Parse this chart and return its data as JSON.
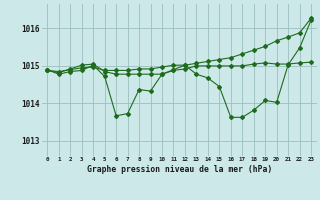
{
  "xlabel": "Graphe pression niveau de la mer (hPa)",
  "background_color": "#cce8e8",
  "plot_bg_color": "#cce8e8",
  "line_color": "#1e6b1e",
  "grid_color": "#9bbfbf",
  "ylim": [
    1012.6,
    1016.65
  ],
  "xlim": [
    -0.5,
    23.5
  ],
  "yticks": [
    1013,
    1014,
    1015,
    1016
  ],
  "xtick_labels": [
    "0",
    "1",
    "2",
    "3",
    "4",
    "5",
    "6",
    "7",
    "8",
    "9",
    "10",
    "11",
    "12",
    "13",
    "14",
    "15",
    "16",
    "17",
    "18",
    "19",
    "20",
    "21",
    "22",
    "23"
  ],
  "series1": [
    1014.9,
    1014.78,
    1014.85,
    1014.88,
    1015.02,
    1014.72,
    1013.67,
    1013.73,
    1014.37,
    1014.33,
    1014.78,
    1014.9,
    1015.02,
    1014.78,
    1014.68,
    1014.45,
    1013.63,
    1013.63,
    1013.82,
    1014.08,
    1014.03,
    1015.03,
    1015.48,
    1016.22
  ],
  "series2": [
    1014.88,
    1014.82,
    1014.92,
    1015.02,
    1015.05,
    1014.85,
    1014.78,
    1014.78,
    1014.78,
    1014.78,
    1014.78,
    1014.88,
    1014.92,
    1015.0,
    1015.0,
    1015.0,
    1015.0,
    1015.0,
    1015.05,
    1015.08,
    1015.05,
    1015.05,
    1015.08,
    1015.1
  ],
  "series3": [
    1014.88,
    1014.85,
    1014.9,
    1014.95,
    1014.97,
    1014.88,
    1014.88,
    1014.88,
    1014.92,
    1014.92,
    1014.97,
    1015.02,
    1015.02,
    1015.07,
    1015.12,
    1015.17,
    1015.22,
    1015.32,
    1015.42,
    1015.52,
    1015.67,
    1015.77,
    1015.88,
    1016.27
  ]
}
